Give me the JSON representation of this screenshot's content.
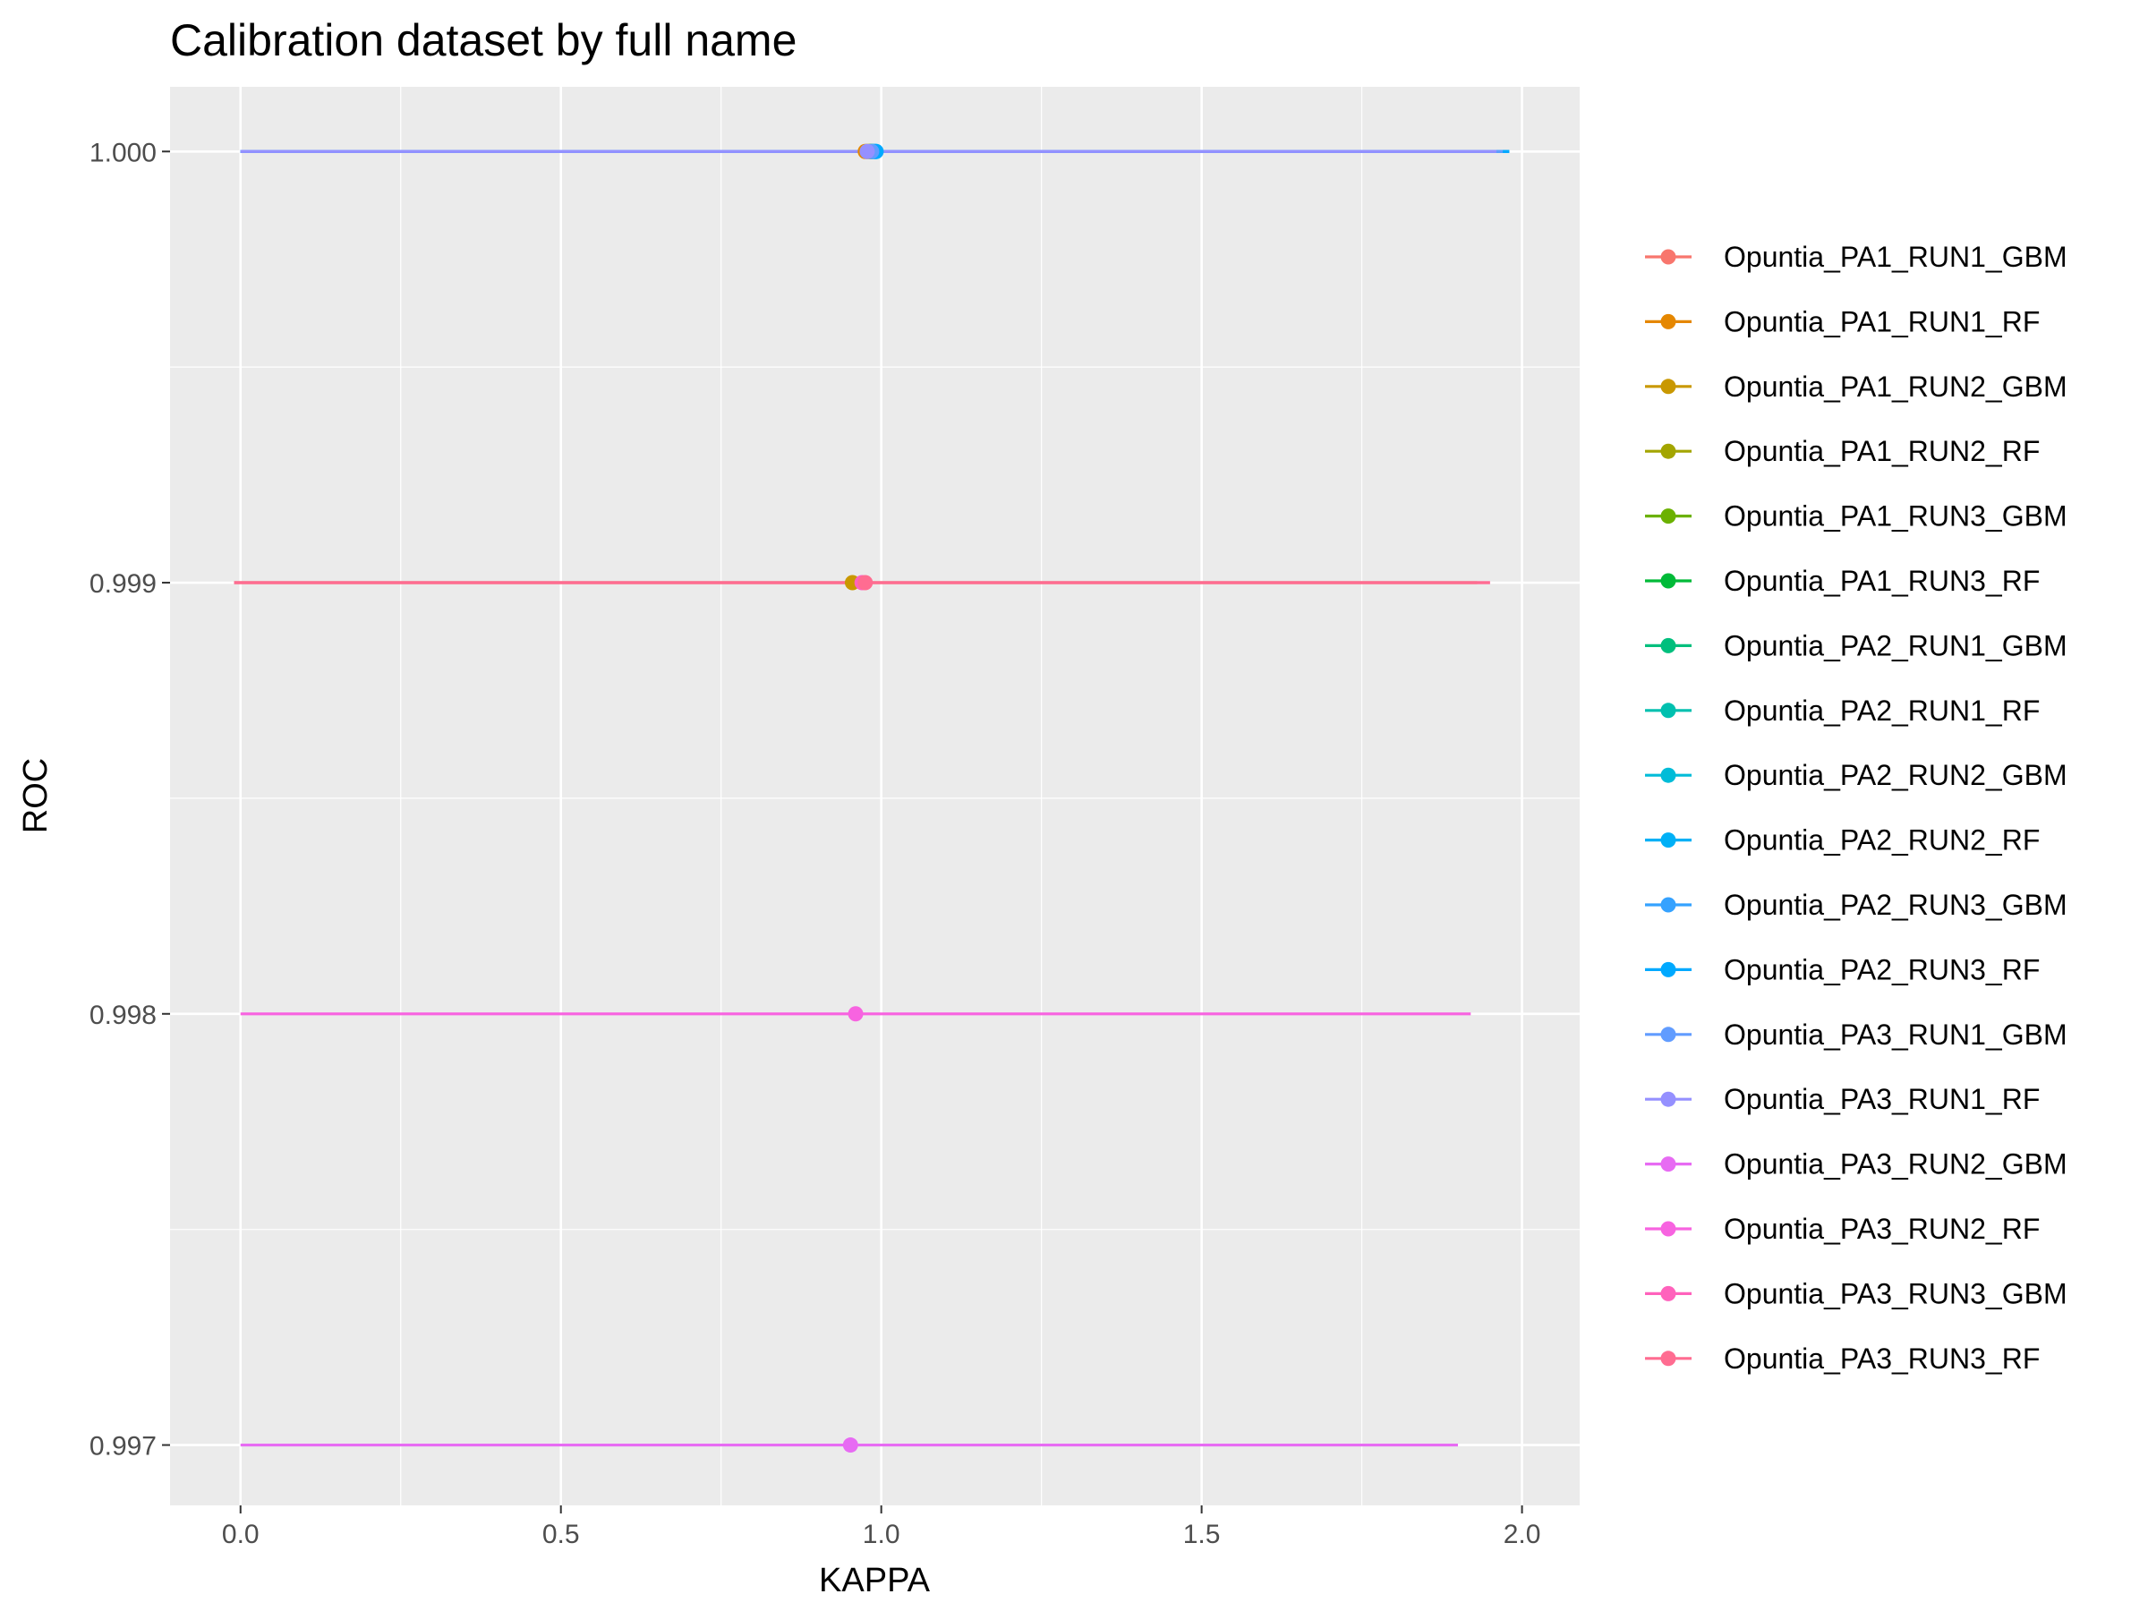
{
  "chart_data": {
    "type": "scatter",
    "title": "Calibration dataset by full name",
    "xlabel": "KAPPA",
    "ylabel": "ROC",
    "xlim": [
      -0.11,
      2.09
    ],
    "ylim": [
      0.99686,
      1.00015
    ],
    "x_ticks": [
      {
        "value": 0.0,
        "label": "0.0"
      },
      {
        "value": 0.5,
        "label": "0.5"
      },
      {
        "value": 1.0,
        "label": "1.0"
      },
      {
        "value": 1.5,
        "label": "1.5"
      },
      {
        "value": 2.0,
        "label": "2.0"
      }
    ],
    "y_ticks": [
      {
        "value": 0.997,
        "label": "0.997"
      },
      {
        "value": 0.998,
        "label": "0.998"
      },
      {
        "value": 0.999,
        "label": "0.999"
      },
      {
        "value": 1.0,
        "label": "1.000"
      }
    ],
    "grid": true,
    "legend_position": "right",
    "series": [
      {
        "name": "Opuntia_PA1_RUN1_GBM",
        "color": "#F8766D",
        "kappa": 0.98,
        "kappa_low": 0.0,
        "kappa_high": 1.96,
        "roc": 1.0
      },
      {
        "name": "Opuntia_PA1_RUN1_RF",
        "color": "#E58700",
        "kappa": 0.975,
        "kappa_low": 0.0,
        "kappa_high": 1.95,
        "roc": 1.0
      },
      {
        "name": "Opuntia_PA1_RUN2_GBM",
        "color": "#C99800",
        "kappa": 0.955,
        "kappa_low": -0.01,
        "kappa_high": 1.93,
        "roc": 0.999
      },
      {
        "name": "Opuntia_PA1_RUN2_RF",
        "color": "#A3A500",
        "kappa": 0.978,
        "kappa_low": 0.0,
        "kappa_high": 1.96,
        "roc": 1.0
      },
      {
        "name": "Opuntia_PA1_RUN3_GBM",
        "color": "#6BB100",
        "kappa": 0.982,
        "kappa_low": 0.0,
        "kappa_high": 1.96,
        "roc": 1.0
      },
      {
        "name": "Opuntia_PA1_RUN3_RF",
        "color": "#00BA38",
        "kappa": 0.984,
        "kappa_low": 0.0,
        "kappa_high": 1.97,
        "roc": 1.0
      },
      {
        "name": "Opuntia_PA2_RUN1_GBM",
        "color": "#00BF7D",
        "kappa": 0.985,
        "kappa_low": 0.0,
        "kappa_high": 1.97,
        "roc": 1.0
      },
      {
        "name": "Opuntia_PA2_RUN1_RF",
        "color": "#00C0AF",
        "kappa": 0.987,
        "kappa_low": 0.0,
        "kappa_high": 1.97,
        "roc": 1.0
      },
      {
        "name": "Opuntia_PA2_RUN2_GBM",
        "color": "#00BCD8",
        "kappa": 0.988,
        "kappa_low": 0.0,
        "kappa_high": 1.98,
        "roc": 1.0
      },
      {
        "name": "Opuntia_PA2_RUN2_RF",
        "color": "#00B0F6",
        "kappa": 0.99,
        "kappa_low": 0.0,
        "kappa_high": 1.98,
        "roc": 1.0
      },
      {
        "name": "Opuntia_PA2_RUN3_GBM",
        "color": "#35A2FF",
        "kappa": 0.991,
        "kappa_low": 0.0,
        "kappa_high": 1.98,
        "roc": 1.0
      },
      {
        "name": "Opuntia_PA2_RUN3_RF",
        "color": "#00A9FF",
        "kappa": 0.992,
        "kappa_low": 0.0,
        "kappa_high": 1.98,
        "roc": 1.0
      },
      {
        "name": "Opuntia_PA3_RUN1_GBM",
        "color": "#619CFF",
        "kappa": 0.985,
        "kappa_low": 0.0,
        "kappa_high": 1.97,
        "roc": 1.0
      },
      {
        "name": "Opuntia_PA3_RUN1_RF",
        "color": "#9590FF",
        "kappa": 0.978,
        "kappa_low": 0.0,
        "kappa_high": 1.96,
        "roc": 1.0
      },
      {
        "name": "Opuntia_PA3_RUN2_GBM",
        "color": "#E76BF3",
        "kappa": 0.952,
        "kappa_low": 0.0,
        "kappa_high": 1.9,
        "roc": 0.997
      },
      {
        "name": "Opuntia_PA3_RUN2_RF",
        "color": "#F763E0",
        "kappa": 0.96,
        "kappa_low": 0.0,
        "kappa_high": 1.92,
        "roc": 0.998
      },
      {
        "name": "Opuntia_PA3_RUN3_GBM",
        "color": "#FF62BC",
        "kappa": 0.97,
        "kappa_low": -0.01,
        "kappa_high": 1.95,
        "roc": 0.999
      },
      {
        "name": "Opuntia_PA3_RUN3_RF",
        "color": "#FF6C91",
        "kappa": 0.975,
        "kappa_low": -0.01,
        "kappa_high": 1.95,
        "roc": 0.999
      }
    ]
  }
}
